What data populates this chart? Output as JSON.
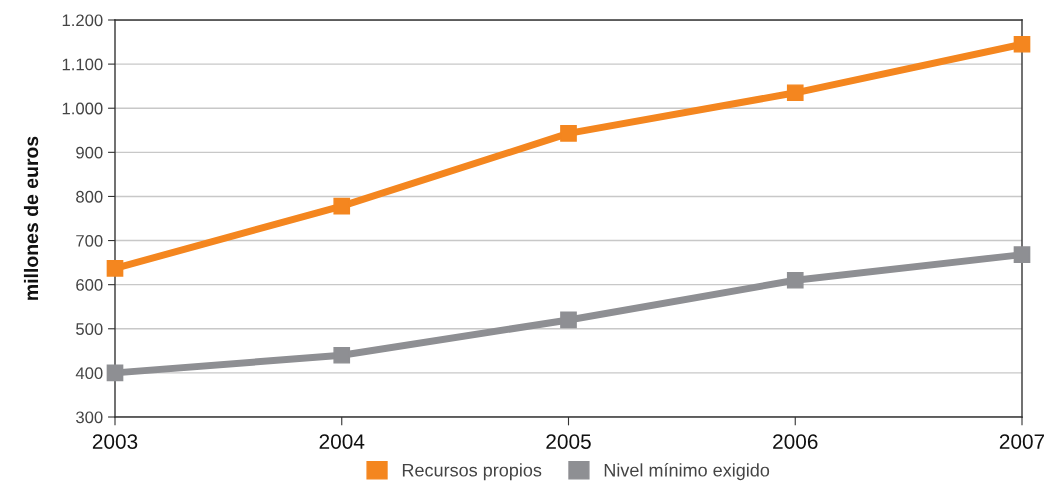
{
  "chart_data": {
    "type": "line",
    "ylabel": "millones de euros",
    "x": [
      2003,
      2004,
      2005,
      2006,
      2007
    ],
    "series": [
      {
        "name": "Recursos propios",
        "color": "#f4861f",
        "values": [
          637,
          778,
          943,
          1035,
          1145
        ]
      },
      {
        "name": "Nivel mínimo exigido",
        "color": "#8e8f93",
        "values": [
          400,
          440,
          520,
          610,
          668
        ]
      }
    ],
    "xlim": [
      2003,
      2007
    ],
    "xticks": [
      2003,
      2004,
      2005,
      2006,
      2007
    ],
    "ylim": [
      300,
      1200
    ],
    "yticks": [
      300,
      400,
      500,
      600,
      700,
      800,
      900,
      {
        "value": 1000,
        "label": "1.000"
      },
      {
        "value": 1100,
        "label": "1.100"
      },
      {
        "value": 1200,
        "label": "1.200"
      }
    ],
    "grid": "y",
    "legend": "bottom",
    "marker": "square",
    "line_style": "solid"
  }
}
